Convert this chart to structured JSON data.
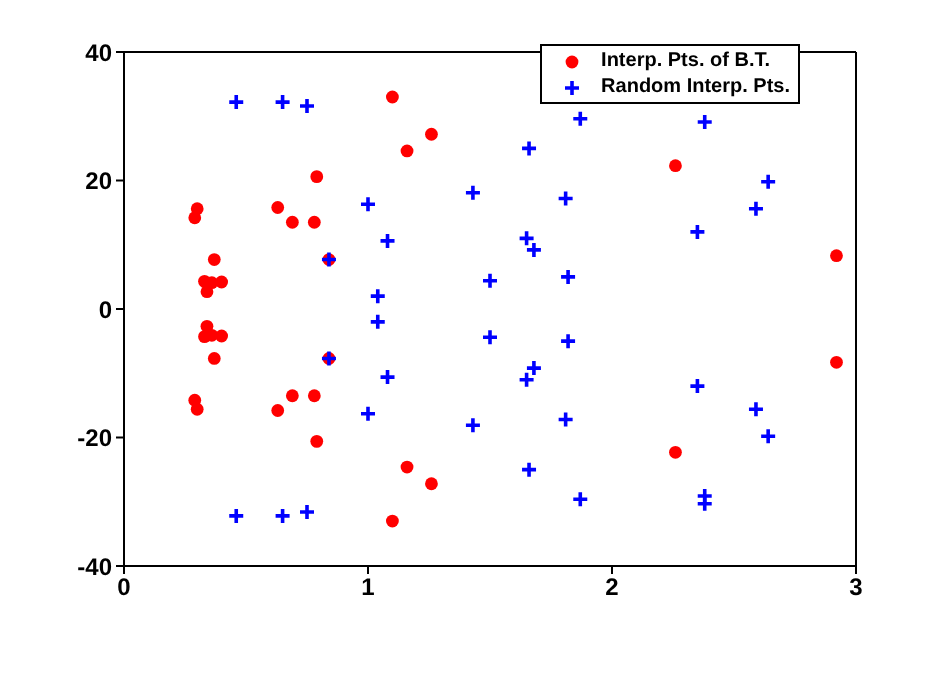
{
  "chart_data": {
    "type": "scatter",
    "xlim": [
      0,
      3
    ],
    "xticks": [
      0,
      1,
      2,
      3
    ],
    "ylim": [
      -40,
      40
    ],
    "yticks": [
      -40,
      -20,
      0,
      20,
      40
    ],
    "legend": "top right",
    "series": [
      {
        "name": "Interp. Pts. of B.T.",
        "color": "#ff0000",
        "marker": "circle",
        "x": [
          0.3,
          0.29,
          0.37,
          0.33,
          0.36,
          0.4,
          0.34,
          0.63,
          0.69,
          0.78,
          0.79,
          0.84,
          1.1,
          1.16,
          1.26,
          2.26,
          2.92,
          0.3,
          0.29,
          0.37,
          0.33,
          0.36,
          0.4,
          0.34,
          0.63,
          0.69,
          0.78,
          0.79,
          0.84,
          1.1,
          1.16,
          1.26,
          2.26,
          2.92
        ],
        "values": [
          15.6,
          14.2,
          7.7,
          4.3,
          4.1,
          4.2,
          2.7,
          15.8,
          13.5,
          13.5,
          20.6,
          7.7,
          33.0,
          24.6,
          27.2,
          22.3,
          8.3,
          -15.6,
          -14.2,
          -7.7,
          -4.3,
          -4.1,
          -4.2,
          -2.7,
          -15.8,
          -13.5,
          -13.5,
          -20.6,
          -7.7,
          -33.0,
          -24.6,
          -27.2,
          -22.3,
          -8.3
        ]
      },
      {
        "name": "Random Interp. Pts.",
        "color": "#0000ff",
        "marker": "cross",
        "x": [
          0.46,
          0.65,
          0.75,
          0.84,
          1.0,
          1.08,
          1.04,
          1.43,
          1.87,
          2.38,
          1.66,
          1.81,
          2.64,
          2.59,
          1.65,
          1.68,
          2.35,
          1.5,
          1.82,
          0.46,
          0.65,
          0.75,
          0.84,
          1.0,
          1.08,
          1.04,
          1.43,
          1.87,
          2.38,
          2.38,
          1.66,
          1.81,
          2.64,
          2.59,
          1.65,
          1.68,
          2.35,
          1.5,
          1.82
        ],
        "values": [
          32.2,
          32.2,
          31.6,
          7.7,
          16.3,
          10.6,
          2.0,
          18.1,
          29.6,
          29.1,
          25.0,
          17.2,
          19.8,
          15.6,
          11.0,
          9.2,
          12.0,
          4.4,
          5.0,
          -32.2,
          -32.2,
          -31.6,
          -7.7,
          -16.3,
          -10.6,
          -2.0,
          -18.1,
          -29.6,
          -29.1,
          -30.3,
          -25.0,
          -17.2,
          -19.8,
          -15.6,
          -11.0,
          -9.2,
          -12.0,
          -4.4,
          -5.0
        ]
      }
    ]
  }
}
